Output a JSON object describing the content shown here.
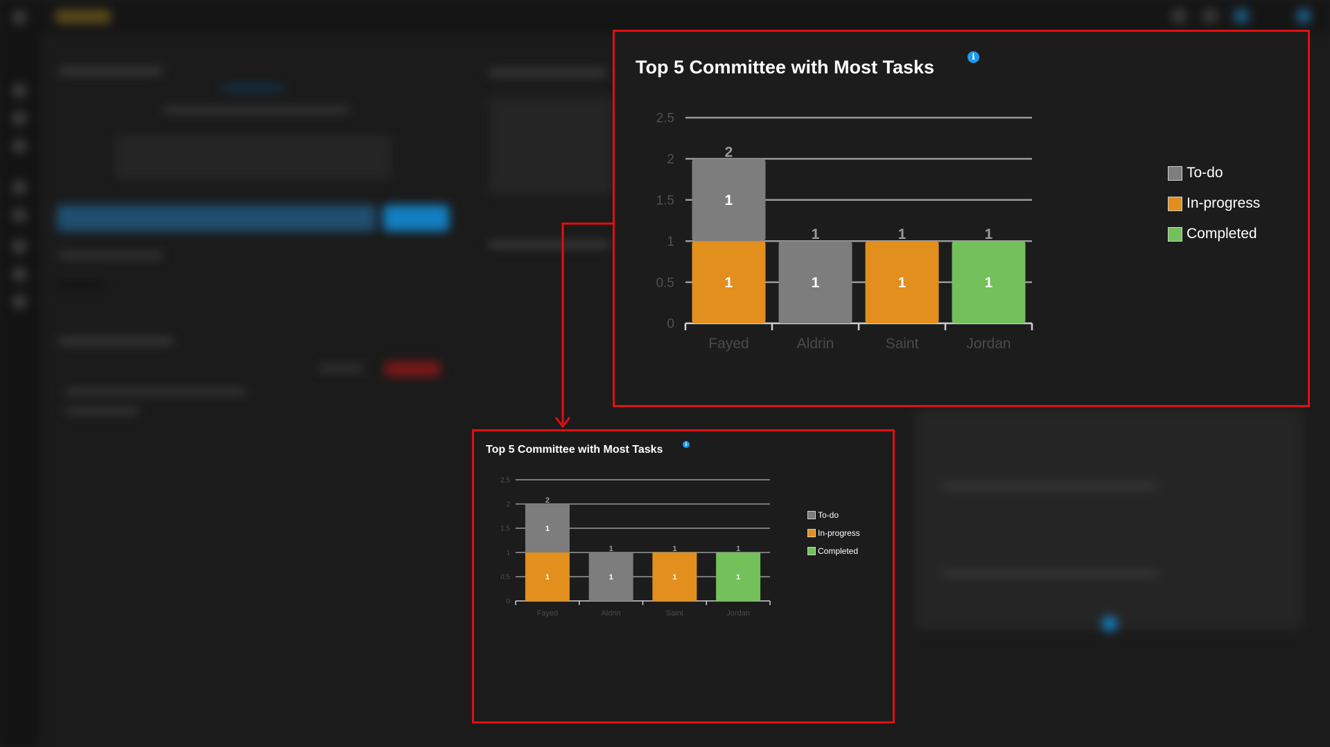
{
  "chart_data": {
    "type": "bar",
    "stacked": true,
    "title": "Top 5 Committee with Most Tasks",
    "categories": [
      "Fayed",
      "Aldrin",
      "Saint",
      "Jordan"
    ],
    "series": [
      {
        "name": "In-progress",
        "color": "#e28f1e",
        "values": [
          1,
          0,
          1,
          0
        ]
      },
      {
        "name": "To-do",
        "color": "#7d7d7d",
        "values": [
          1,
          1,
          0,
          0
        ]
      },
      {
        "name": "Completed",
        "color": "#74c05b",
        "values": [
          0,
          0,
          0,
          1
        ]
      }
    ],
    "totals": [
      "2",
      "1",
      "1",
      "1"
    ],
    "ylim": [
      0,
      2.5
    ],
    "yticks": [
      "0",
      "0.5",
      "1",
      "1.5",
      "2",
      "2.5"
    ],
    "grid": true,
    "legend": "right",
    "legend_order": [
      "To-do",
      "In-progress",
      "Completed"
    ],
    "info_icon": "info-icon"
  },
  "colors": {
    "callout_border": "#e30f0f",
    "panel_background": "#1c1c1c",
    "info_icon": "#1e9ae8"
  }
}
